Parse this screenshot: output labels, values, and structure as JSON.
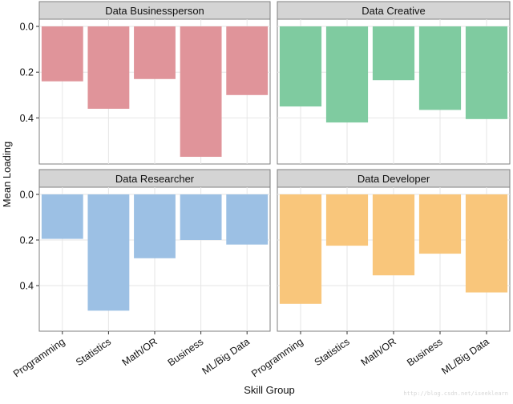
{
  "chart_data": {
    "type": "bar",
    "layout": "facet-grid-2x2",
    "xlabel": "Skill Group",
    "ylabel": "Mean Loading",
    "categories": [
      "Programming",
      "Statistics",
      "Math/OR",
      "Business",
      "ML/Big Data"
    ],
    "y_axis": {
      "reversed": true,
      "ylim": [
        0,
        0.6
      ],
      "ticks": [
        "0.0",
        "0.2",
        "0.4"
      ],
      "tick_values": [
        0.0,
        0.2,
        0.4
      ]
    },
    "grid": true,
    "facet_strip_color": "#d4d4d4",
    "panels": [
      {
        "title": "Data Businessperson",
        "color": "#e0949a",
        "values": [
          0.24,
          0.36,
          0.23,
          0.57,
          0.3
        ]
      },
      {
        "title": "Data Creative",
        "color": "#7fcba0",
        "values": [
          0.35,
          0.42,
          0.235,
          0.365,
          0.405
        ]
      },
      {
        "title": "Data Researcher",
        "color": "#9cc0e4",
        "values": [
          0.195,
          0.51,
          0.28,
          0.2,
          0.22
        ]
      },
      {
        "title": "Data Developer",
        "color": "#f9c67b",
        "values": [
          0.48,
          0.225,
          0.355,
          0.26,
          0.43
        ]
      }
    ]
  },
  "watermark": "http://blog.csdn.net/iseeklearn"
}
